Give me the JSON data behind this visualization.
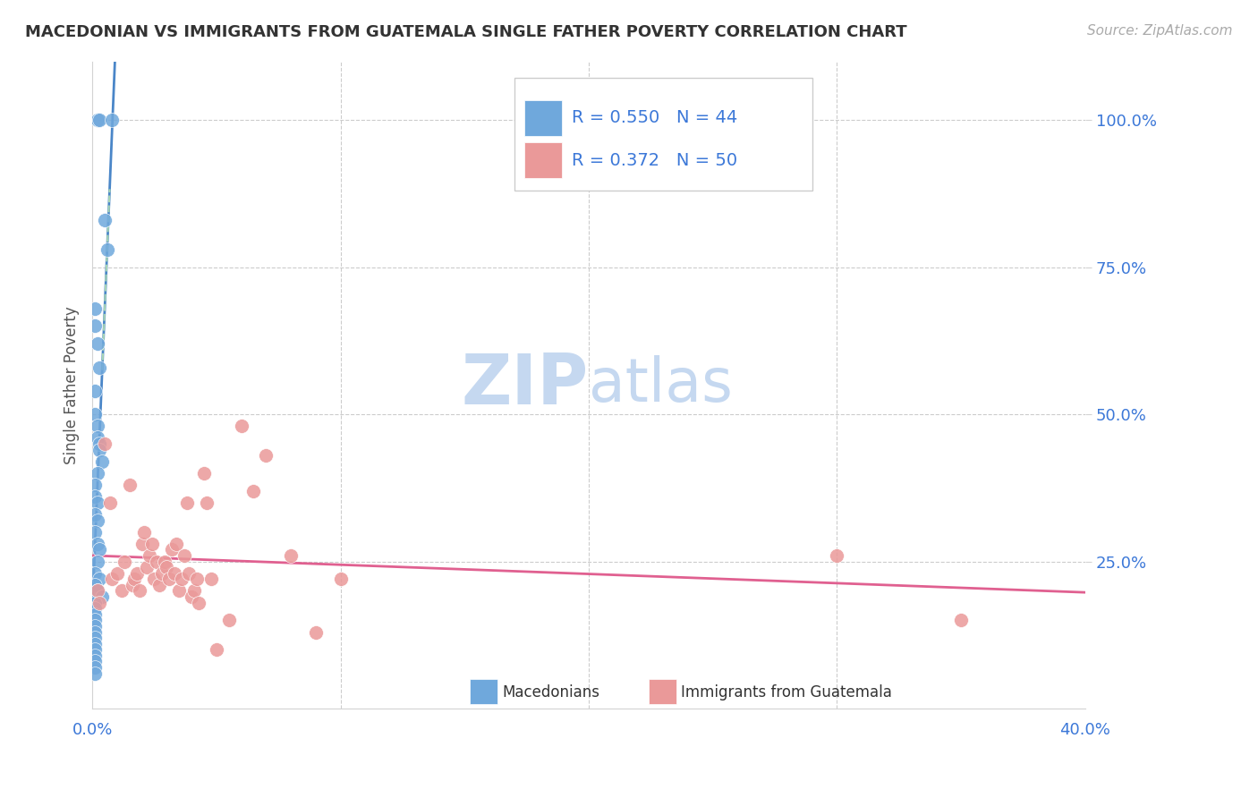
{
  "title": "MACEDONIAN VS IMMIGRANTS FROM GUATEMALA SINGLE FATHER POVERTY CORRELATION CHART",
  "source": "Source: ZipAtlas.com",
  "ylabel": "Single Father Poverty",
  "legend_blue_r": "R = 0.550",
  "legend_blue_n": "N = 44",
  "legend_pink_r": "R = 0.372",
  "legend_pink_n": "N = 50",
  "blue_color": "#6fa8dc",
  "pink_color": "#ea9999",
  "blue_line_color": "#4a86c8",
  "pink_line_color": "#e06090",
  "dashed_line_color": "#a8d5b5",
  "axis_label_color": "#3c78d8",
  "grid_color": "#cccccc",
  "title_color": "#333333",
  "watermark_zip_color": "#c5d8f0",
  "watermark_atlas_color": "#c5d8f0",
  "blue_scatter_x": [
    0.002,
    0.003,
    0.008,
    0.005,
    0.006,
    0.001,
    0.001,
    0.002,
    0.003,
    0.001,
    0.001,
    0.002,
    0.002,
    0.003,
    0.003,
    0.004,
    0.002,
    0.001,
    0.001,
    0.002,
    0.001,
    0.002,
    0.001,
    0.002,
    0.003,
    0.002,
    0.001,
    0.003,
    0.001,
    0.002,
    0.004,
    0.001,
    0.001,
    0.001,
    0.001,
    0.001,
    0.001,
    0.001,
    0.001,
    0.001,
    0.001,
    0.001,
    0.001,
    0.001
  ],
  "blue_scatter_y": [
    1.0,
    1.0,
    1.0,
    0.83,
    0.78,
    0.68,
    0.65,
    0.62,
    0.58,
    0.54,
    0.5,
    0.48,
    0.46,
    0.45,
    0.44,
    0.42,
    0.4,
    0.38,
    0.36,
    0.35,
    0.33,
    0.32,
    0.3,
    0.28,
    0.27,
    0.25,
    0.23,
    0.22,
    0.21,
    0.2,
    0.19,
    0.18,
    0.17,
    0.16,
    0.15,
    0.14,
    0.13,
    0.12,
    0.11,
    0.1,
    0.09,
    0.08,
    0.07,
    0.06
  ],
  "pink_scatter_x": [
    0.002,
    0.003,
    0.005,
    0.007,
    0.008,
    0.01,
    0.012,
    0.013,
    0.015,
    0.016,
    0.017,
    0.018,
    0.019,
    0.02,
    0.021,
    0.022,
    0.023,
    0.024,
    0.025,
    0.026,
    0.027,
    0.028,
    0.029,
    0.03,
    0.031,
    0.032,
    0.033,
    0.034,
    0.035,
    0.036,
    0.037,
    0.038,
    0.039,
    0.04,
    0.041,
    0.042,
    0.043,
    0.045,
    0.046,
    0.048,
    0.05,
    0.055,
    0.06,
    0.065,
    0.07,
    0.08,
    0.09,
    0.1,
    0.3,
    0.35
  ],
  "pink_scatter_y": [
    0.2,
    0.18,
    0.45,
    0.35,
    0.22,
    0.23,
    0.2,
    0.25,
    0.38,
    0.21,
    0.22,
    0.23,
    0.2,
    0.28,
    0.3,
    0.24,
    0.26,
    0.28,
    0.22,
    0.25,
    0.21,
    0.23,
    0.25,
    0.24,
    0.22,
    0.27,
    0.23,
    0.28,
    0.2,
    0.22,
    0.26,
    0.35,
    0.23,
    0.19,
    0.2,
    0.22,
    0.18,
    0.4,
    0.35,
    0.22,
    0.1,
    0.15,
    0.48,
    0.37,
    0.43,
    0.26,
    0.13,
    0.22,
    0.26,
    0.15
  ],
  "xlim": [
    0.0,
    0.4
  ],
  "ylim": [
    0.0,
    1.1
  ],
  "ytick_positions": [
    0.25,
    0.5,
    0.75,
    1.0
  ]
}
